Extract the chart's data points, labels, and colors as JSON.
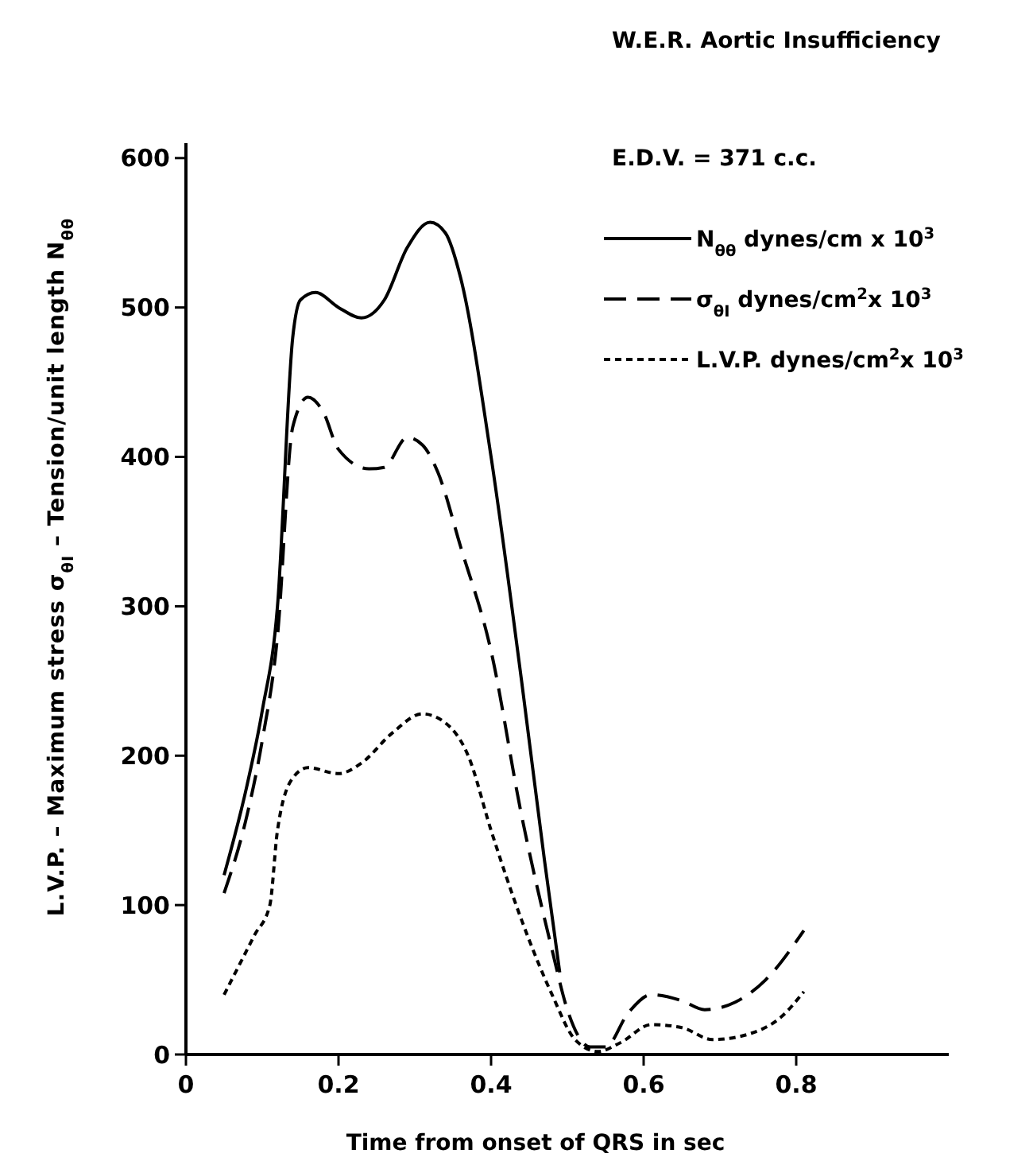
{
  "chart_data": {
    "type": "line",
    "title": "W.E.R.   Aortic Insufficiency",
    "annotations": [
      "E.D.V. = 371 c.c."
    ],
    "xlabel": "Time from onset of QRS in sec",
    "ylabel": "L.V.P. – Maximum stress σ$_{θI}$ – Tension/unit length N$_{θθ}$",
    "xlim": [
      0,
      1.0
    ],
    "ylim": [
      0,
      610
    ],
    "xticks": [
      0,
      0.2,
      0.4,
      0.6,
      0.8
    ],
    "yticks": [
      0,
      100,
      200,
      300,
      400,
      500,
      600
    ],
    "grid": false,
    "legend": "top right",
    "marker": "none",
    "series": [
      {
        "name": "N$_{θθ}$  dynes/cm x 10$^{3}$",
        "color": "#000000",
        "line_style": "solid",
        "x": [
          0.05,
          0.08,
          0.1,
          0.12,
          0.14,
          0.15,
          0.17,
          0.2,
          0.23,
          0.26,
          0.29,
          0.32,
          0.34,
          0.36,
          0.4,
          0.44,
          0.47,
          0.49
        ],
        "values": [
          120,
          180,
          230,
          300,
          480,
          505,
          510,
          500,
          493,
          505,
          540,
          557,
          550,
          520,
          400,
          250,
          130,
          55
        ]
      },
      {
        "name": "σ$_{θI}$  dynes/cm$^{2}$x 10$^{3}$",
        "color": "#000000",
        "line_style": "dashed",
        "x": [
          0.05,
          0.08,
          0.1,
          0.12,
          0.14,
          0.16,
          0.18,
          0.2,
          0.24,
          0.26,
          0.29,
          0.31,
          0.33,
          0.36,
          0.4,
          0.44,
          0.48,
          0.5,
          0.53,
          0.55,
          0.58,
          0.61,
          0.65,
          0.68,
          0.72,
          0.76,
          0.81
        ],
        "values": [
          108,
          160,
          210,
          280,
          420,
          440,
          430,
          405,
          392,
          393,
          413,
          408,
          390,
          340,
          270,
          160,
          70,
          30,
          5,
          5,
          28,
          40,
          36,
          30,
          35,
          50,
          83
        ]
      },
      {
        "name": "L.V.P. dynes/cm$^{2}$x 10$^{3}$",
        "color": "#000000",
        "line_style": "dotted",
        "x": [
          0.05,
          0.09,
          0.11,
          0.12,
          0.14,
          0.16,
          0.2,
          0.23,
          0.27,
          0.31,
          0.34,
          0.37,
          0.4,
          0.44,
          0.48,
          0.51,
          0.54,
          0.57,
          0.61,
          0.65,
          0.69,
          0.74,
          0.78,
          0.81
        ],
        "values": [
          40,
          80,
          100,
          150,
          185,
          192,
          188,
          195,
          215,
          228,
          222,
          200,
          150,
          90,
          40,
          10,
          2,
          8,
          20,
          18,
          10,
          14,
          25,
          42
        ]
      }
    ]
  }
}
